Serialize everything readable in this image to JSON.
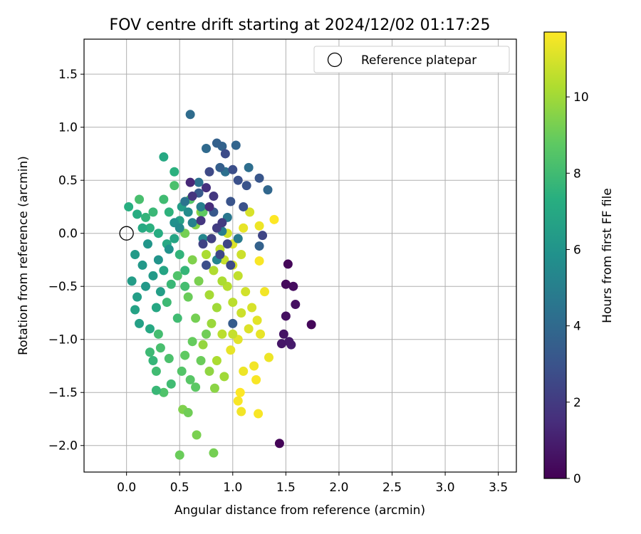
{
  "chart_data": {
    "type": "scatter",
    "title": "FOV centre drift starting at 2024/12/02 01:17:25",
    "xlabel": "Angular distance from reference (arcmin)",
    "ylabel": "Rotation from reference (arcmin)",
    "xlim": [
      -0.4,
      3.67
    ],
    "ylim": [
      -2.25,
      1.83
    ],
    "xticks": [
      0.0,
      0.5,
      1.0,
      1.5,
      2.0,
      2.5,
      3.0,
      3.5
    ],
    "xtick_labels": [
      "0.0",
      "0.5",
      "1.0",
      "1.5",
      "2.0",
      "2.5",
      "3.0",
      "3.5"
    ],
    "yticks": [
      -2.0,
      -1.5,
      -1.0,
      -0.5,
      0.0,
      0.5,
      1.0,
      1.5
    ],
    "ytick_labels": [
      "−2.0",
      "−1.5",
      "−1.0",
      "−0.5",
      "0.0",
      "0.5",
      "1.0",
      "1.5"
    ],
    "grid": true,
    "legend": {
      "placement": "top-right",
      "entries": [
        {
          "label": "Reference platepar",
          "marker": "open-circle"
        }
      ]
    },
    "reference_point": {
      "x": 0.0,
      "y": 0.0
    },
    "colorbar": {
      "label": "Hours from first FF file",
      "range": [
        0,
        11.7
      ],
      "ticks": [
        0,
        2,
        4,
        6,
        8,
        10
      ],
      "tick_labels": [
        "0",
        "2",
        "4",
        "6",
        "8",
        "10"
      ],
      "colormap": "viridis",
      "colors": [
        "#440154",
        "#472d7b",
        "#3b528b",
        "#2c728e",
        "#21918c",
        "#28ae80",
        "#5ec962",
        "#addc30",
        "#fde725"
      ]
    },
    "series": [
      {
        "points": [
          {
            "x": 1.44,
            "y": -1.98,
            "c": 0.1
          },
          {
            "x": 1.74,
            "y": -0.86,
            "c": 0.2
          },
          {
            "x": 1.52,
            "y": -0.29,
            "c": 0.2
          },
          {
            "x": 1.5,
            "y": -0.48,
            "c": 0.3
          },
          {
            "x": 1.57,
            "y": -0.5,
            "c": 0.4
          },
          {
            "x": 1.59,
            "y": -0.67,
            "c": 0.5
          },
          {
            "x": 1.5,
            "y": -0.78,
            "c": 0.5
          },
          {
            "x": 1.48,
            "y": -0.95,
            "c": 0.6
          },
          {
            "x": 1.46,
            "y": -1.04,
            "c": 0.7
          },
          {
            "x": 1.53,
            "y": -1.02,
            "c": 0.8
          },
          {
            "x": 1.55,
            "y": -1.05,
            "c": 0.9
          },
          {
            "x": 0.6,
            "y": 0.48,
            "c": 1.3
          },
          {
            "x": 0.75,
            "y": 0.43,
            "c": 1.6
          },
          {
            "x": 0.82,
            "y": 0.35,
            "c": 1.9
          },
          {
            "x": 0.78,
            "y": 0.25,
            "c": 1.5
          },
          {
            "x": 0.7,
            "y": 0.12,
            "c": 1.8
          },
          {
            "x": 0.85,
            "y": 0.05,
            "c": 2.1
          },
          {
            "x": 0.8,
            "y": -0.05,
            "c": 2.2
          },
          {
            "x": 0.95,
            "y": -0.1,
            "c": 2.4
          },
          {
            "x": 0.9,
            "y": 0.1,
            "c": 2.0
          },
          {
            "x": 0.72,
            "y": -0.1,
            "c": 2.3
          },
          {
            "x": 0.88,
            "y": -0.2,
            "c": 2.5
          },
          {
            "x": 0.78,
            "y": 0.58,
            "c": 2.6
          },
          {
            "x": 0.62,
            "y": 0.35,
            "c": 1.8
          },
          {
            "x": 0.93,
            "y": 0.75,
            "c": 2.7
          },
          {
            "x": 1.0,
            "y": 0.6,
            "c": 2.8
          },
          {
            "x": 1.05,
            "y": 0.5,
            "c": 2.9
          },
          {
            "x": 1.13,
            "y": 0.45,
            "c": 3.0
          },
          {
            "x": 1.25,
            "y": 0.52,
            "c": 3.1
          },
          {
            "x": 0.98,
            "y": 0.3,
            "c": 3.0
          },
          {
            "x": 1.1,
            "y": 0.25,
            "c": 2.9
          },
          {
            "x": 0.82,
            "y": 0.2,
            "c": 3.2
          },
          {
            "x": 0.68,
            "y": 0.38,
            "c": 3.3
          },
          {
            "x": 1.28,
            "y": -0.02,
            "c": 2.4
          },
          {
            "x": 0.98,
            "y": -0.3,
            "c": 2.6
          },
          {
            "x": 0.75,
            "y": -0.3,
            "c": 2.8
          },
          {
            "x": 1.0,
            "y": -0.85,
            "c": 3.4
          },
          {
            "x": 0.88,
            "y": 0.62,
            "c": 3.5
          },
          {
            "x": 0.85,
            "y": 0.85,
            "c": 3.6
          },
          {
            "x": 0.9,
            "y": 0.82,
            "c": 3.7
          },
          {
            "x": 1.03,
            "y": 0.83,
            "c": 3.8
          },
          {
            "x": 0.75,
            "y": 0.8,
            "c": 4.0
          },
          {
            "x": 0.6,
            "y": 1.12,
            "c": 4.1
          },
          {
            "x": 1.33,
            "y": 0.41,
            "c": 3.9
          },
          {
            "x": 1.25,
            "y": -0.12,
            "c": 3.6
          },
          {
            "x": 1.15,
            "y": 0.62,
            "c": 4.2
          },
          {
            "x": 0.93,
            "y": 0.58,
            "c": 4.3
          },
          {
            "x": 0.68,
            "y": 0.48,
            "c": 4.4
          },
          {
            "x": 0.55,
            "y": 0.3,
            "c": 4.5
          },
          {
            "x": 0.95,
            "y": 0.15,
            "c": 4.6
          },
          {
            "x": 1.05,
            "y": -0.05,
            "c": 4.8
          },
          {
            "x": 0.9,
            "y": 0.02,
            "c": 4.9
          },
          {
            "x": 0.7,
            "y": 0.25,
            "c": 5.0
          },
          {
            "x": 0.62,
            "y": 0.1,
            "c": 5.1
          },
          {
            "x": 0.85,
            "y": -0.25,
            "c": 5.3
          },
          {
            "x": 0.72,
            "y": -0.05,
            "c": 5.4
          },
          {
            "x": 0.5,
            "y": 0.05,
            "c": 5.5
          },
          {
            "x": 0.58,
            "y": 0.2,
            "c": 5.6
          },
          {
            "x": 0.45,
            "y": 0.1,
            "c": 5.8
          },
          {
            "x": 0.4,
            "y": -0.15,
            "c": 5.9
          },
          {
            "x": 0.3,
            "y": -0.25,
            "c": 6.0
          },
          {
            "x": 0.2,
            "y": -0.1,
            "c": 6.1
          },
          {
            "x": 0.15,
            "y": -0.3,
            "c": 6.2
          },
          {
            "x": 0.08,
            "y": -0.2,
            "c": 6.3
          },
          {
            "x": 0.05,
            "y": -0.45,
            "c": 6.4
          },
          {
            "x": 0.1,
            "y": -0.6,
            "c": 6.5
          },
          {
            "x": 0.12,
            "y": -0.85,
            "c": 6.6
          },
          {
            "x": 0.08,
            "y": -0.72,
            "c": 6.7
          },
          {
            "x": 0.18,
            "y": -0.5,
            "c": 6.2
          },
          {
            "x": 0.25,
            "y": -0.4,
            "c": 6.3
          },
          {
            "x": 0.32,
            "y": -0.55,
            "c": 6.5
          },
          {
            "x": 0.35,
            "y": -0.35,
            "c": 6.8
          },
          {
            "x": 0.28,
            "y": -0.7,
            "c": 6.9
          },
          {
            "x": 0.22,
            "y": -0.9,
            "c": 7.0
          },
          {
            "x": 0.15,
            "y": 0.05,
            "c": 7.1
          },
          {
            "x": 0.1,
            "y": 0.18,
            "c": 7.2
          },
          {
            "x": 0.02,
            "y": 0.25,
            "c": 7.3
          },
          {
            "x": 0.35,
            "y": 0.72,
            "c": 7.0
          },
          {
            "x": 0.45,
            "y": 0.58,
            "c": 7.4
          },
          {
            "x": 0.4,
            "y": 0.2,
            "c": 7.5
          },
          {
            "x": 0.5,
            "y": -0.2,
            "c": 7.6
          },
          {
            "x": 0.55,
            "y": -0.35,
            "c": 7.7
          },
          {
            "x": 0.42,
            "y": -0.48,
            "c": 7.8
          },
          {
            "x": 0.38,
            "y": -0.65,
            "c": 7.9
          },
          {
            "x": 0.48,
            "y": -0.8,
            "c": 8.0
          },
          {
            "x": 0.3,
            "y": -0.95,
            "c": 8.1
          },
          {
            "x": 0.22,
            "y": -1.12,
            "c": 7.9
          },
          {
            "x": 0.25,
            "y": -1.2,
            "c": 7.7
          },
          {
            "x": 0.28,
            "y": -1.3,
            "c": 8.0
          },
          {
            "x": 0.32,
            "y": -1.08,
            "c": 8.2
          },
          {
            "x": 0.4,
            "y": -1.18,
            "c": 8.3
          },
          {
            "x": 0.42,
            "y": -1.42,
            "c": 8.0
          },
          {
            "x": 0.28,
            "y": -1.48,
            "c": 7.8
          },
          {
            "x": 0.35,
            "y": -1.5,
            "c": 8.4
          },
          {
            "x": 0.52,
            "y": -1.3,
            "c": 8.5
          },
          {
            "x": 0.6,
            "y": -1.38,
            "c": 8.6
          },
          {
            "x": 0.65,
            "y": -1.45,
            "c": 8.7
          },
          {
            "x": 0.55,
            "y": -1.15,
            "c": 8.8
          },
          {
            "x": 0.62,
            "y": -1.02,
            "c": 8.9
          },
          {
            "x": 0.7,
            "y": -1.2,
            "c": 9.0
          },
          {
            "x": 0.75,
            "y": -0.95,
            "c": 9.1
          },
          {
            "x": 0.65,
            "y": -0.8,
            "c": 9.2
          },
          {
            "x": 0.58,
            "y": -0.6,
            "c": 9.0
          },
          {
            "x": 0.68,
            "y": -0.45,
            "c": 9.3
          },
          {
            "x": 0.62,
            "y": -0.25,
            "c": 9.4
          },
          {
            "x": 0.55,
            "y": 0.0,
            "c": 9.2
          },
          {
            "x": 0.65,
            "y": 0.08,
            "c": 9.5
          },
          {
            "x": 0.72,
            "y": 0.2,
            "c": 8.8
          },
          {
            "x": 0.6,
            "y": 0.32,
            "c": 8.5
          },
          {
            "x": 0.45,
            "y": 0.45,
            "c": 8.3
          },
          {
            "x": 0.35,
            "y": 0.32,
            "c": 8.0
          },
          {
            "x": 0.25,
            "y": 0.2,
            "c": 7.8
          },
          {
            "x": 0.18,
            "y": 0.15,
            "c": 7.6
          },
          {
            "x": 0.12,
            "y": 0.32,
            "c": 8.2
          },
          {
            "x": 0.22,
            "y": 0.05,
            "c": 7.4
          },
          {
            "x": 0.3,
            "y": 0.0,
            "c": 7.2
          },
          {
            "x": 0.38,
            "y": -0.1,
            "c": 7.0
          },
          {
            "x": 0.45,
            "y": -0.05,
            "c": 6.8
          },
          {
            "x": 0.5,
            "y": 0.12,
            "c": 6.6
          },
          {
            "x": 0.52,
            "y": 0.25,
            "c": 6.4
          },
          {
            "x": 0.55,
            "y": -0.5,
            "c": 8.1
          },
          {
            "x": 0.48,
            "y": -0.4,
            "c": 8.4
          },
          {
            "x": 0.5,
            "y": -2.09,
            "c": 9.0
          },
          {
            "x": 0.82,
            "y": -2.07,
            "c": 9.2
          },
          {
            "x": 0.66,
            "y": -1.9,
            "c": 9.3
          },
          {
            "x": 0.58,
            "y": -1.69,
            "c": 9.1
          },
          {
            "x": 0.53,
            "y": -1.66,
            "c": 9.4
          },
          {
            "x": 0.83,
            "y": -1.46,
            "c": 9.6
          },
          {
            "x": 0.78,
            "y": -1.3,
            "c": 9.7
          },
          {
            "x": 0.72,
            "y": -1.05,
            "c": 9.8
          },
          {
            "x": 0.8,
            "y": -0.85,
            "c": 9.9
          },
          {
            "x": 0.85,
            "y": -0.7,
            "c": 10.0
          },
          {
            "x": 0.78,
            "y": -0.58,
            "c": 10.1
          },
          {
            "x": 0.9,
            "y": -0.45,
            "c": 10.2
          },
          {
            "x": 0.82,
            "y": -0.35,
            "c": 10.3
          },
          {
            "x": 0.95,
            "y": -0.5,
            "c": 10.4
          },
          {
            "x": 1.0,
            "y": -0.65,
            "c": 10.5
          },
          {
            "x": 1.05,
            "y": -0.4,
            "c": 10.6
          },
          {
            "x": 0.92,
            "y": -0.25,
            "c": 10.7
          },
          {
            "x": 1.08,
            "y": -0.2,
            "c": 10.8
          },
          {
            "x": 1.12,
            "y": -0.55,
            "c": 10.9
          },
          {
            "x": 1.18,
            "y": -0.7,
            "c": 11.0
          },
          {
            "x": 1.15,
            "y": -0.9,
            "c": 11.1
          },
          {
            "x": 1.05,
            "y": -1.0,
            "c": 11.2
          },
          {
            "x": 0.98,
            "y": -1.1,
            "c": 11.3
          },
          {
            "x": 1.1,
            "y": -1.3,
            "c": 11.4
          },
          {
            "x": 1.2,
            "y": -1.25,
            "c": 11.5
          },
          {
            "x": 1.22,
            "y": -1.38,
            "c": 11.6
          },
          {
            "x": 1.07,
            "y": -1.5,
            "c": 11.7
          },
          {
            "x": 1.05,
            "y": -1.58,
            "c": 11.6
          },
          {
            "x": 1.08,
            "y": -1.68,
            "c": 11.5
          },
          {
            "x": 1.24,
            "y": -1.7,
            "c": 11.6
          },
          {
            "x": 1.34,
            "y": -1.17,
            "c": 11.4
          },
          {
            "x": 1.26,
            "y": -0.95,
            "c": 11.3
          },
          {
            "x": 1.23,
            "y": -0.82,
            "c": 11.2
          },
          {
            "x": 1.3,
            "y": -0.55,
            "c": 11.5
          },
          {
            "x": 1.25,
            "y": -0.26,
            "c": 11.6
          },
          {
            "x": 1.25,
            "y": 0.07,
            "c": 11.4
          },
          {
            "x": 1.39,
            "y": 0.13,
            "c": 11.7
          },
          {
            "x": 1.16,
            "y": 0.2,
            "c": 11.0
          },
          {
            "x": 1.1,
            "y": 0.05,
            "c": 11.3
          },
          {
            "x": 1.0,
            "y": -0.1,
            "c": 11.1
          },
          {
            "x": 0.95,
            "y": 0.0,
            "c": 10.9
          },
          {
            "x": 0.88,
            "y": -0.15,
            "c": 10.6
          },
          {
            "x": 0.8,
            "y": -0.05,
            "c": 10.5
          },
          {
            "x": 0.7,
            "y": 0.2,
            "c": 9.6
          },
          {
            "x": 0.75,
            "y": -0.2,
            "c": 10.2
          },
          {
            "x": 1.0,
            "y": -0.3,
            "c": 11.0
          },
          {
            "x": 1.08,
            "y": -0.75,
            "c": 10.8
          },
          {
            "x": 0.9,
            "y": -0.95,
            "c": 10.5
          },
          {
            "x": 0.85,
            "y": -1.2,
            "c": 10.2
          },
          {
            "x": 0.92,
            "y": -1.35,
            "c": 10.0
          },
          {
            "x": 1.0,
            "y": -0.95,
            "c": 10.7
          }
        ]
      }
    ]
  }
}
